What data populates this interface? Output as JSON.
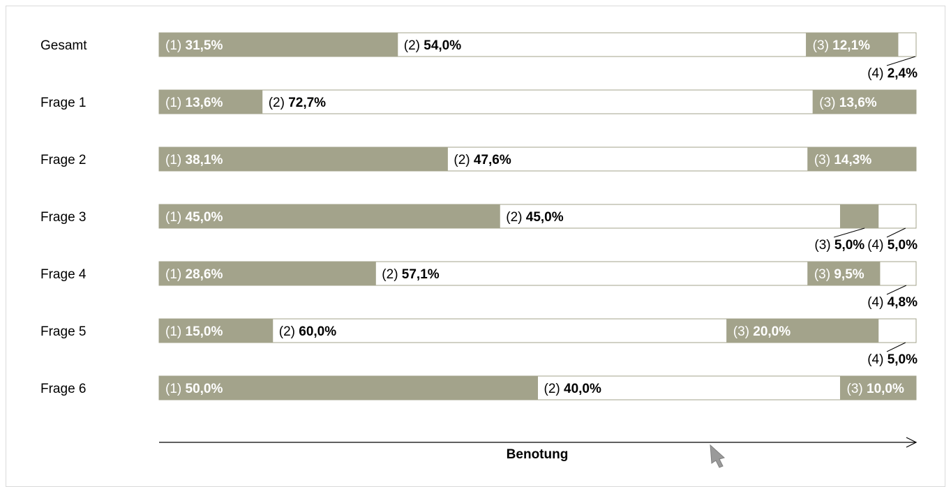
{
  "chart_data": {
    "type": "bar",
    "stacked": "100%",
    "xlabel": "Benotung",
    "colors": {
      "filled": "#a3a38b",
      "empty": "#ffffff",
      "border": "#a3a38b",
      "inside_label": "#ffffff",
      "outside_label": "#000000"
    },
    "rows": [
      {
        "label": "Gesamt",
        "segments": [
          {
            "grade": "(1)",
            "value": 31.5,
            "text": "31,5%"
          },
          {
            "grade": "(2)",
            "value": 54.0,
            "text": "54,0%"
          },
          {
            "grade": "(3)",
            "value": 12.1,
            "text": "12,1%"
          },
          {
            "grade": "(4)",
            "value": 2.4,
            "text": "2,4%"
          }
        ]
      },
      {
        "label": "Frage 1",
        "segments": [
          {
            "grade": "(1)",
            "value": 13.6,
            "text": "13,6%"
          },
          {
            "grade": "(2)",
            "value": 72.7,
            "text": "72,7%"
          },
          {
            "grade": "(3)",
            "value": 13.6,
            "text": "13,6%"
          }
        ]
      },
      {
        "label": "Frage 2",
        "segments": [
          {
            "grade": "(1)",
            "value": 38.1,
            "text": "38,1%"
          },
          {
            "grade": "(2)",
            "value": 47.6,
            "text": "47,6%"
          },
          {
            "grade": "(3)",
            "value": 14.3,
            "text": "14,3%"
          }
        ]
      },
      {
        "label": "Frage 3",
        "segments": [
          {
            "grade": "(1)",
            "value": 45.0,
            "text": "45,0%"
          },
          {
            "grade": "(2)",
            "value": 45.0,
            "text": "45,0%"
          },
          {
            "grade": "(3)",
            "value": 5.0,
            "text": "5,0%"
          },
          {
            "grade": "(4)",
            "value": 5.0,
            "text": "5,0%"
          }
        ]
      },
      {
        "label": "Frage 4",
        "segments": [
          {
            "grade": "(1)",
            "value": 28.6,
            "text": "28,6%"
          },
          {
            "grade": "(2)",
            "value": 57.1,
            "text": "57,1%"
          },
          {
            "grade": "(3)",
            "value": 9.5,
            "text": "9,5%"
          },
          {
            "grade": "(4)",
            "value": 4.8,
            "text": "4,8%"
          }
        ]
      },
      {
        "label": "Frage 5",
        "segments": [
          {
            "grade": "(1)",
            "value": 15.0,
            "text": "15,0%"
          },
          {
            "grade": "(2)",
            "value": 60.0,
            "text": "60,0%"
          },
          {
            "grade": "(3)",
            "value": 20.0,
            "text": "20,0%"
          },
          {
            "grade": "(4)",
            "value": 5.0,
            "text": "5,0%"
          }
        ]
      },
      {
        "label": "Frage 6",
        "segments": [
          {
            "grade": "(1)",
            "value": 50.0,
            "text": "50,0%"
          },
          {
            "grade": "(2)",
            "value": 40.0,
            "text": "40,0%"
          },
          {
            "grade": "(3)",
            "value": 10.0,
            "text": "10,0%"
          }
        ]
      }
    ]
  }
}
